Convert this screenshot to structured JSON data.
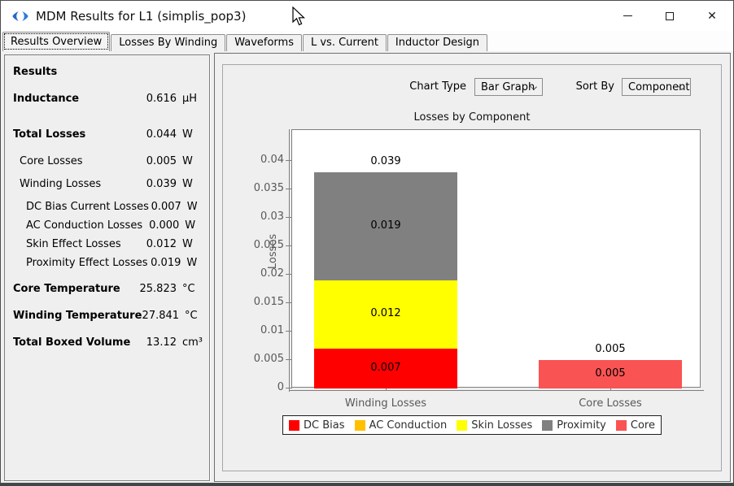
{
  "window": {
    "title": "MDM Results for L1 (simplis_pop3)",
    "icon": "simetrix-arrows-icon",
    "controls": [
      "minimize",
      "maximize",
      "close"
    ]
  },
  "tabs": [
    {
      "label": "Results Overview",
      "active": true
    },
    {
      "label": "Losses By Winding",
      "active": false
    },
    {
      "label": "Waveforms",
      "active": false
    },
    {
      "label": "L vs. Current",
      "active": false
    },
    {
      "label": "Inductor Design",
      "active": false
    }
  ],
  "results_panel": {
    "heading": "Results",
    "rows": [
      {
        "label": "Inductance",
        "value": "0.616",
        "unit": "µH"
      },
      {
        "label": "Total Losses",
        "value": "0.044",
        "unit": "W"
      },
      {
        "label": "Core Losses",
        "value": "0.005",
        "unit": "W"
      },
      {
        "label": "Winding Losses",
        "value": "0.039",
        "unit": "W"
      },
      {
        "label": "DC Bias Current Losses",
        "value": "0.007",
        "unit": "W"
      },
      {
        "label": "AC Conduction Losses",
        "value": "0.000",
        "unit": "W"
      },
      {
        "label": "Skin Effect Losses",
        "value": "0.012",
        "unit": "W"
      },
      {
        "label": "Proximity Effect Losses",
        "value": "0.019",
        "unit": "W"
      },
      {
        "label": "Core Temperature",
        "value": "25.823",
        "unit": "°C"
      },
      {
        "label": "Winding Temperature",
        "value": "27.841",
        "unit": "°C"
      },
      {
        "label": "Total Boxed Volume",
        "value": "13.12",
        "unit": "cm³"
      }
    ]
  },
  "chart_controls": {
    "chart_type_label": "Chart Type",
    "chart_type_value": "Bar Graph",
    "sort_by_label": "Sort By",
    "sort_by_value": "Component"
  },
  "chart_data": {
    "type": "bar",
    "stacked": true,
    "title": "Losses by Component",
    "ylabel": "Losses",
    "categories": [
      "Winding Losses",
      "Core Losses"
    ],
    "series": [
      {
        "name": "DC Bias",
        "color": "#fe0000",
        "values": [
          0.007,
          0
        ]
      },
      {
        "name": "AC Conduction",
        "color": "#ffc000",
        "values": [
          0.0,
          0
        ]
      },
      {
        "name": "Skin Losses",
        "color": "#ffff00",
        "values": [
          0.012,
          0
        ]
      },
      {
        "name": "Proximity",
        "color": "#808080",
        "values": [
          0.019,
          0
        ]
      },
      {
        "name": "Core",
        "color": "#fa5353",
        "values": [
          0,
          0.005
        ]
      }
    ],
    "segment_labels": [
      [
        "0.007",
        ""
      ],
      [
        "",
        ""
      ],
      [
        "0.012",
        ""
      ],
      [
        "0.019",
        ""
      ],
      [
        "",
        "0.005"
      ]
    ],
    "totals": [
      "0.039",
      "0.005"
    ],
    "yticks": [
      0,
      0.005,
      0.01,
      0.015,
      0.02,
      0.025,
      0.03,
      0.035,
      0.04
    ],
    "ylim": [
      0,
      0.0455
    ],
    "grid": false,
    "legend_position": "bottom"
  }
}
